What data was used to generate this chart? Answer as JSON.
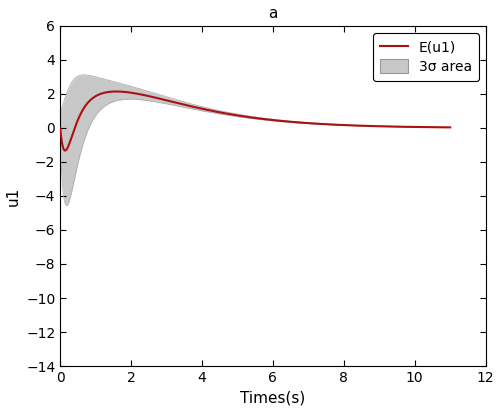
{
  "title": "a",
  "xlabel": "Times(s)",
  "ylabel": "u1",
  "xlim": [
    0,
    12
  ],
  "ylim": [
    -14,
    6
  ],
  "xticks": [
    0,
    2,
    4,
    6,
    8,
    10,
    12
  ],
  "yticks": [
    -14,
    -12,
    -10,
    -8,
    -6,
    -4,
    -2,
    0,
    2,
    4,
    6
  ],
  "line_color": "#aa1111",
  "band_color": "#c8c8c8",
  "band_edge_color": "#b0b0b0",
  "legend_labels": [
    "E(u1)",
    "3σ area"
  ],
  "background_color": "#ffffff",
  "title_fontsize": 11,
  "label_fontsize": 11,
  "tick_fontsize": 10,
  "legend_fontsize": 10
}
